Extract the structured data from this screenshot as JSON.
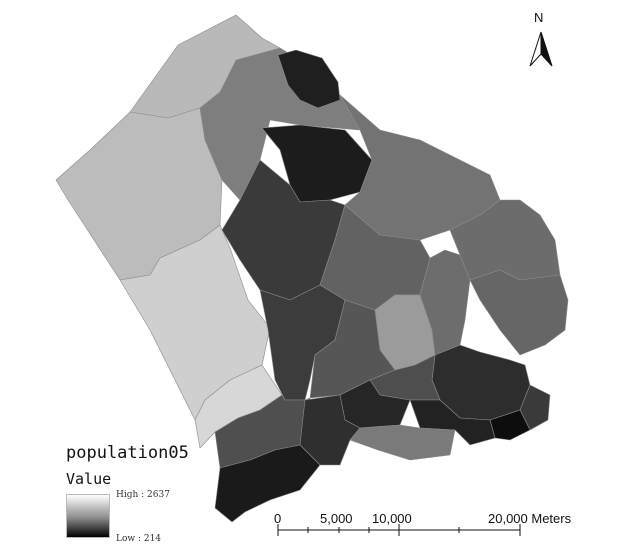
{
  "map": {
    "title": "population05",
    "legend_field": "Value",
    "legend_high": "High : 2637",
    "legend_low": "Low : 214",
    "north": "N",
    "scale_labels": [
      "0",
      "5,000",
      "10,000",
      "20,000 Meters"
    ],
    "colors": {
      "high": "#ffffff",
      "low": "#000000"
    }
  }
}
